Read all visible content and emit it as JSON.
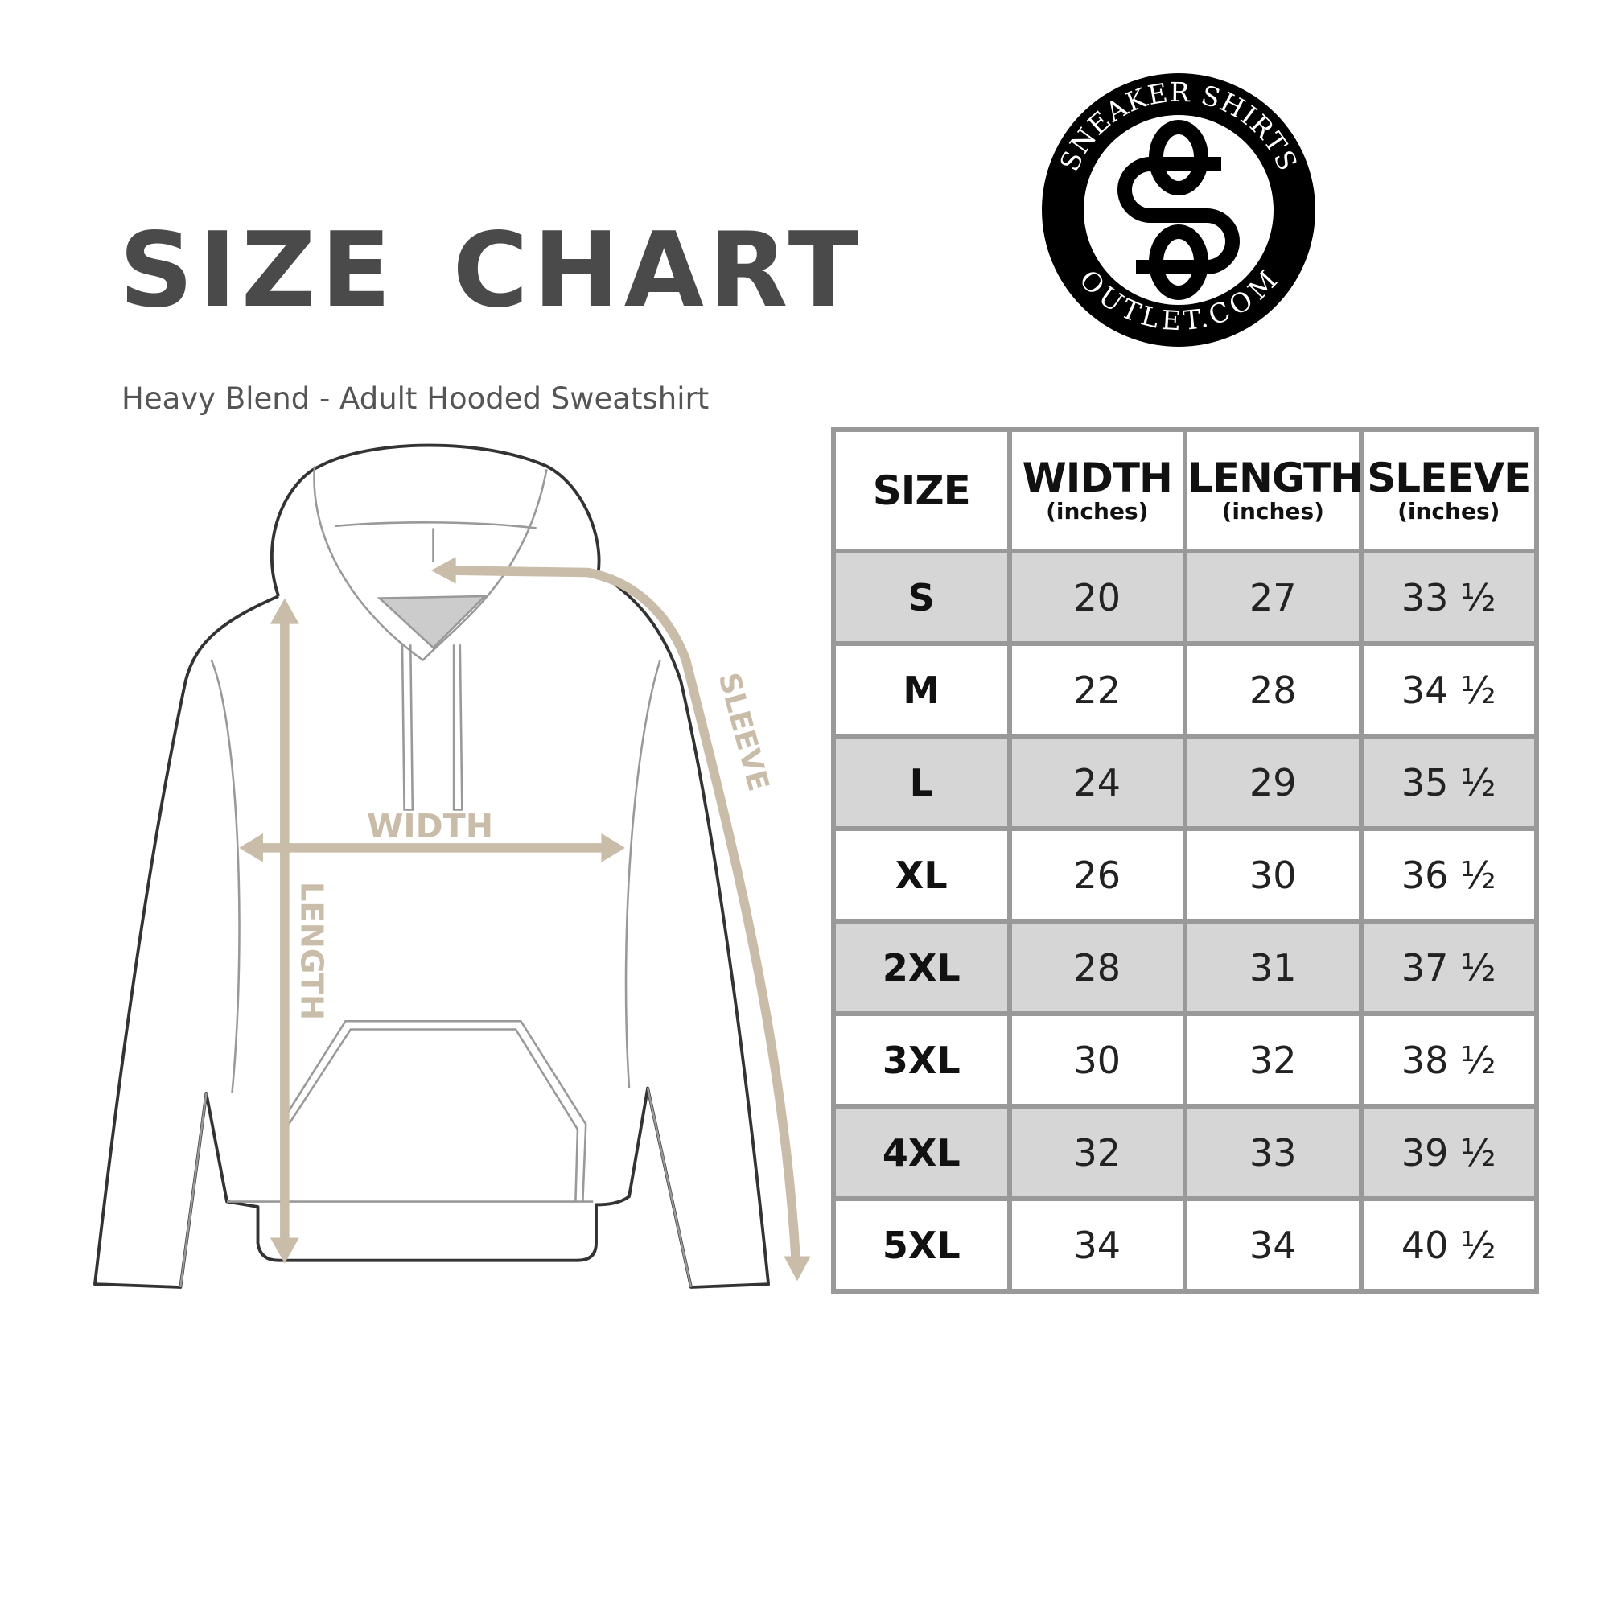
{
  "header": {
    "title": "SIZE CHART",
    "subtitle": "Heavy Blend - Adult Hooded Sweatshirt"
  },
  "logo": {
    "top_text": "SNEAKER SHIRTS",
    "bottom_text": "OUTLET.COM",
    "monogram": "SS"
  },
  "diagram": {
    "width_label": "WIDTH",
    "length_label": "LENGTH",
    "sleeve_label": "SLEEVE",
    "arrow_color": "#c9bca8"
  },
  "table": {
    "columns": [
      {
        "label": "SIZE",
        "unit": ""
      },
      {
        "label": "WIDTH",
        "unit": "(inches)"
      },
      {
        "label": "LENGTH",
        "unit": "(inches)"
      },
      {
        "label": "SLEEVE",
        "unit": "(inches)"
      }
    ],
    "rows": [
      [
        "S",
        "20",
        "27",
        "33 ½"
      ],
      [
        "M",
        "22",
        "28",
        "34 ½"
      ],
      [
        "L",
        "24",
        "29",
        "35 ½"
      ],
      [
        "XL",
        "26",
        "30",
        "36 ½"
      ],
      [
        "2XL",
        "28",
        "31",
        "37 ½"
      ],
      [
        "3XL",
        "30",
        "32",
        "38 ½"
      ],
      [
        "4XL",
        "32",
        "33",
        "39 ½"
      ],
      [
        "5XL",
        "34",
        "34",
        "40 ½"
      ]
    ],
    "shade_color": "#d6d6d6",
    "border_color": "#999999"
  }
}
